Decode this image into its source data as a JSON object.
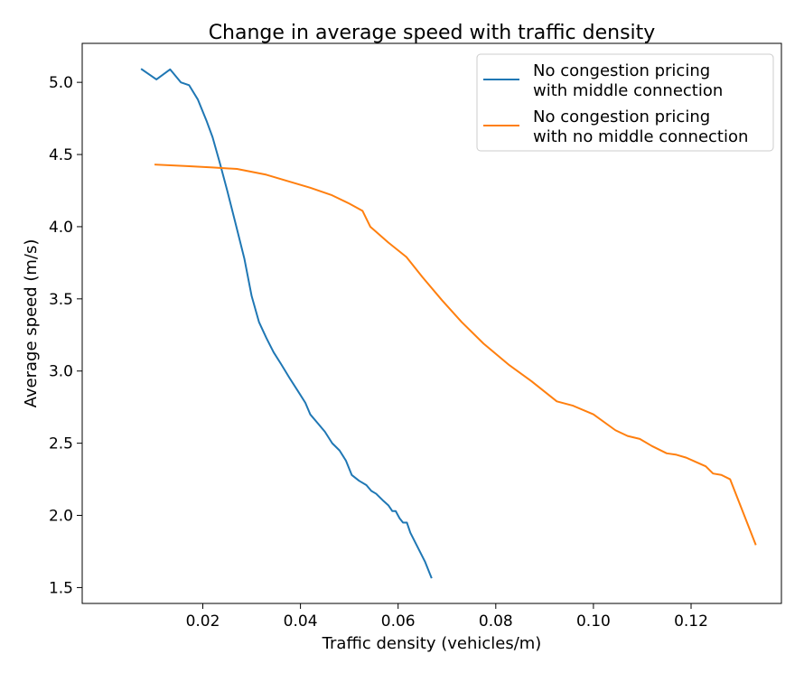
{
  "chart_data": {
    "type": "line",
    "title": "Change in average speed with traffic density",
    "xlabel": "Traffic density (vehicles/m)",
    "ylabel": "Average speed (m/s)",
    "xlim": [
      -0.0047,
      0.1385
    ],
    "ylim": [
      1.39,
      5.27
    ],
    "xticks": [
      0.02,
      0.04,
      0.06,
      0.08,
      0.1,
      0.12
    ],
    "xtick_labels": [
      "0.02",
      "0.04",
      "0.06",
      "0.08",
      "0.10",
      "0.12"
    ],
    "yticks": [
      1.5,
      2.0,
      2.5,
      3.0,
      3.5,
      4.0,
      4.5,
      5.0
    ],
    "ytick_labels": [
      "1.5",
      "2.0",
      "2.5",
      "3.0",
      "3.5",
      "4.0",
      "4.5",
      "5.0"
    ],
    "grid": false,
    "legend_position": "top-right",
    "series": [
      {
        "name": "No congestion pricing\nwith middle connection",
        "color": "#1f77b4",
        "x": [
          0.0075,
          0.0105,
          0.0133,
          0.0155,
          0.0172,
          0.019,
          0.0208,
          0.022,
          0.0235,
          0.025,
          0.0265,
          0.0285,
          0.03,
          0.0315,
          0.033,
          0.0345,
          0.036,
          0.0378,
          0.0395,
          0.041,
          0.042,
          0.0435,
          0.045,
          0.0465,
          0.048,
          0.0493,
          0.0505,
          0.052,
          0.0535,
          0.0545,
          0.0555,
          0.057,
          0.058,
          0.0588,
          0.0595,
          0.0603,
          0.061,
          0.0618,
          0.0625,
          0.064,
          0.0655,
          0.0668
        ],
        "y": [
          5.09,
          5.02,
          5.09,
          5.0,
          4.98,
          4.88,
          4.73,
          4.62,
          4.44,
          4.25,
          4.05,
          3.78,
          3.52,
          3.34,
          3.23,
          3.13,
          3.05,
          2.95,
          2.86,
          2.78,
          2.7,
          2.64,
          2.58,
          2.5,
          2.45,
          2.38,
          2.28,
          2.24,
          2.21,
          2.17,
          2.15,
          2.1,
          2.07,
          2.03,
          2.03,
          1.98,
          1.95,
          1.95,
          1.88,
          1.78,
          1.68,
          1.57
        ]
      },
      {
        "name": "No congestion pricing\nwith no middle connection",
        "color": "#ff7f0e",
        "x": [
          0.0103,
          0.0168,
          0.022,
          0.027,
          0.033,
          0.038,
          0.042,
          0.0463,
          0.05,
          0.0527,
          0.0543,
          0.058,
          0.0617,
          0.065,
          0.069,
          0.073,
          0.0775,
          0.0828,
          0.0873,
          0.0925,
          0.0958,
          0.1,
          0.1045,
          0.107,
          0.1095,
          0.112,
          0.115,
          0.117,
          0.119,
          0.121,
          0.123,
          0.1245,
          0.1262,
          0.128,
          0.1332
        ],
        "y": [
          4.43,
          4.42,
          4.41,
          4.4,
          4.36,
          4.31,
          4.27,
          4.22,
          4.16,
          4.11,
          4.0,
          3.89,
          3.79,
          3.65,
          3.49,
          3.34,
          3.19,
          3.04,
          2.93,
          2.79,
          2.76,
          2.7,
          2.59,
          2.55,
          2.53,
          2.48,
          2.43,
          2.42,
          2.4,
          2.37,
          2.34,
          2.29,
          2.28,
          2.25,
          1.8
        ]
      }
    ]
  }
}
